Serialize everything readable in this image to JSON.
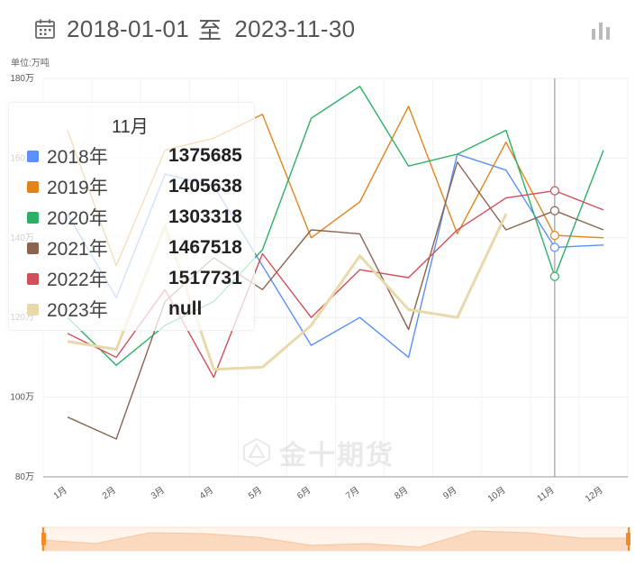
{
  "header": {
    "start_date": "2018-01-01",
    "separator": "至",
    "end_date": "2023-11-30",
    "calendar_icon": "calendar-icon",
    "chart_type_icon": "bar-chart-icon"
  },
  "unit_label": "单位:万吨",
  "watermark": "金十期货",
  "tooltip": {
    "title": "11月",
    "rows": [
      {
        "name": "2018年",
        "value": "1375685"
      },
      {
        "name": "2019年",
        "value": "1405638"
      },
      {
        "name": "2020年",
        "value": "1303318"
      },
      {
        "name": "2021年",
        "value": "1467518"
      },
      {
        "name": "2022年",
        "value": "1517731"
      },
      {
        "name": "2023年",
        "value": "null"
      }
    ]
  },
  "chart_data": {
    "type": "line",
    "x": [
      "1月",
      "2月",
      "3月",
      "4月",
      "5月",
      "6月",
      "7月",
      "8月",
      "9月",
      "10月",
      "11月",
      "12月"
    ],
    "y_ticks": [
      "80万",
      "100万",
      "120万",
      "140万",
      "160万",
      "180万"
    ],
    "ylim": [
      80,
      180
    ],
    "y_unit": "万吨",
    "highlight_category": "11月",
    "series": [
      {
        "name": "2018年",
        "color": "#5b8ff9",
        "values": [
          146,
          125,
          156,
          153,
          133,
          113,
          120,
          110,
          161,
          157,
          137.6,
          138.2
        ]
      },
      {
        "name": "2019年",
        "color": "#e0851c",
        "values": [
          167,
          133,
          162,
          165,
          171,
          140,
          149,
          173,
          141,
          164,
          140.6,
          140
        ]
      },
      {
        "name": "2020年",
        "color": "#2cb064",
        "values": [
          120,
          108,
          118,
          124,
          137,
          170,
          178,
          158,
          161,
          167,
          130.3,
          162
        ]
      },
      {
        "name": "2021年",
        "color": "#8b6450",
        "values": [
          95,
          89.5,
          124,
          135,
          127,
          142,
          141,
          117,
          159,
          142,
          146.8,
          142
        ]
      },
      {
        "name": "2022年",
        "color": "#cf4f5a",
        "values": [
          116,
          110,
          127,
          105,
          136,
          120,
          132,
          130,
          142,
          150,
          151.8,
          147
        ]
      },
      {
        "name": "2023年",
        "color": "#e8d9aa",
        "values": [
          114,
          112,
          143,
          107,
          107.5,
          118,
          135.5,
          122,
          120,
          146,
          null,
          null
        ]
      }
    ]
  },
  "slider": {
    "range_start": 0,
    "range_end": 100,
    "handle_color": "#f28c28",
    "fill_color": "#fde6d5"
  }
}
